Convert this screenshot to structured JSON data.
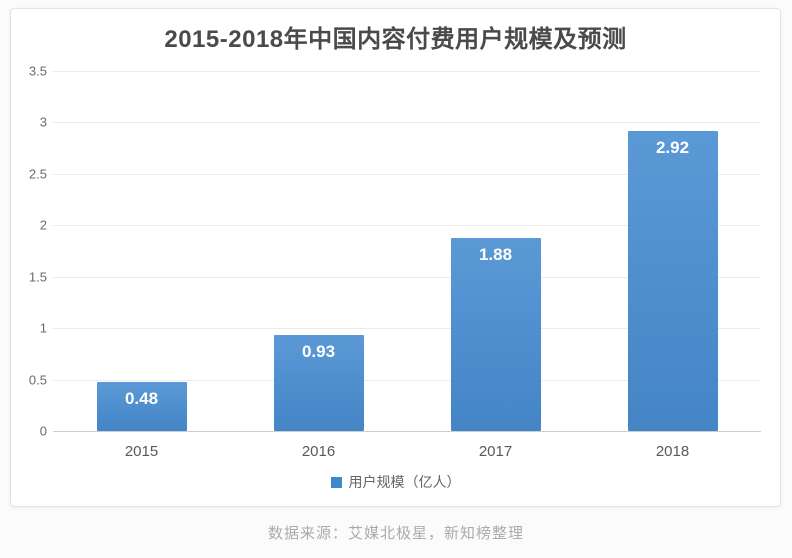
{
  "card": {
    "background": "#ffffff",
    "border_color": "#e3e3e3"
  },
  "chart_data": {
    "type": "bar",
    "title": "2015-2018年中国内容付费用户规模及预测",
    "categories": [
      "2015",
      "2016",
      "2017",
      "2018"
    ],
    "values": [
      0.48,
      0.93,
      1.88,
      2.92
    ],
    "value_labels": [
      "0.48",
      "0.93",
      "1.88",
      "2.92"
    ],
    "series_name": "用户规模（亿人）",
    "xlabel": "",
    "ylabel": "",
    "ylim": [
      0,
      3.5
    ],
    "ytick_step": 0.5,
    "yticks": [
      "0",
      "0.5",
      "1",
      "1.5",
      "2",
      "2.5",
      "3",
      "3.5"
    ],
    "grid": true,
    "legend_position": "bottom",
    "bar_color_top": "#5b99d6",
    "bar_color_bottom": "#4485c6",
    "gridline_color": "#ebebeb",
    "baseline_color": "#cdcdcd",
    "value_label_color": "#ffffff",
    "title_color": "#4a4a4a"
  },
  "legend": {
    "label": "用户规模（亿人）",
    "swatch_color": "#3f88cc"
  },
  "footer": {
    "source_text": "数据来源：艾媒北极星，新知榜整理"
  }
}
